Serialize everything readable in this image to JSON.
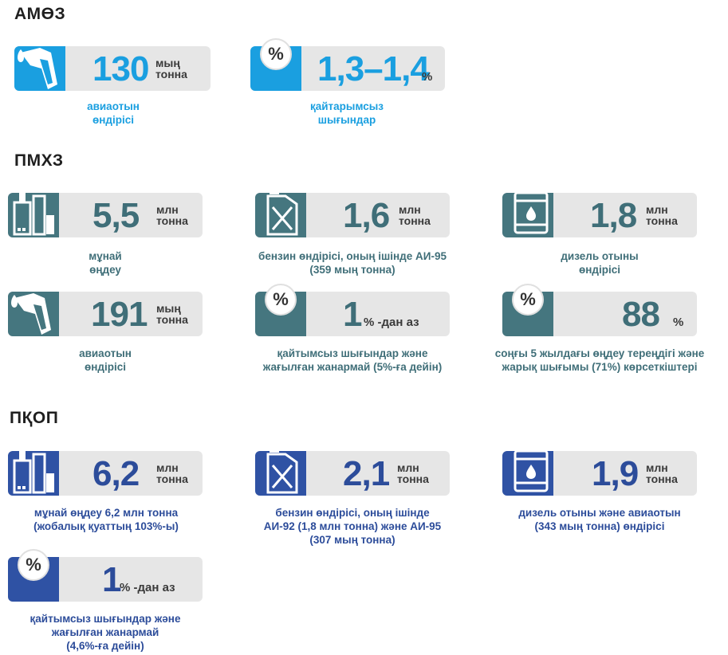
{
  "sections": {
    "amoz": "АМӨЗ",
    "pmhz": "ПМХЗ",
    "pkop": "ПҚОП"
  },
  "amoz": {
    "card1": {
      "value": "130",
      "unit1": "мың",
      "unit2": "тонна",
      "caption1": "авиаотын",
      "caption2": "өндірісі",
      "icon": "fuel-nozzle-icon"
    },
    "card2": {
      "value": "1,3–1,4",
      "unit": "%",
      "caption1": "қайтарымсыз",
      "caption2": "шығындар",
      "icon": "percent-icon"
    }
  },
  "pmhz": {
    "card1": {
      "value": "5,5",
      "unit1": "млн",
      "unit2": "тонна",
      "caption1": "мұнай",
      "caption2": "өңдеу",
      "icon": "refinery-icon"
    },
    "card2": {
      "value": "1,6",
      "unit1": "млн",
      "unit2": "тонна",
      "caption1": "бензин өндірісі, оның ішінде АИ-95",
      "caption2": "(359 мың тонна)",
      "icon": "jerrycan-icon"
    },
    "card3": {
      "value": "1,8",
      "unit1": "млн",
      "unit2": "тонна",
      "caption1": "дизель отыны",
      "caption2": "өндірісі",
      "icon": "barrel-icon"
    },
    "card4": {
      "value": "191",
      "unit1": "мың",
      "unit2": "тонна",
      "caption1": "авиаотын",
      "caption2": "өндірісі",
      "icon": "fuel-nozzle-icon"
    },
    "card5": {
      "value": "1",
      "unit": "% -дан аз",
      "caption1": "қайтымсыз шығындар және",
      "caption2": "жағылған жанармай (5%-ға дейін)",
      "icon": "percent-icon"
    },
    "card6": {
      "value": "88",
      "unit": "%",
      "caption1": "соңғы 5 жылдағы өңдеу тереңдігі және",
      "caption2": "жарық шығымы (71%) көрсеткіштері",
      "icon": "percent-icon"
    }
  },
  "pkop": {
    "card1": {
      "value": "6,2",
      "unit1": "млн",
      "unit2": "тонна",
      "caption1": "мұнай өңдеу 6,2 млн тонна",
      "caption2": "(жобалық қуаттың 103%-ы)",
      "icon": "refinery-icon"
    },
    "card2": {
      "value": "2,1",
      "unit1": "млн",
      "unit2": "тонна",
      "caption1": "бензин өндірісі, оның ішінде",
      "caption2": "АИ-92 (1,8 млн тонна) және АИ-95",
      "caption3": "(307 мың тонна)",
      "icon": "jerrycan-icon"
    },
    "card3": {
      "value": "1,9",
      "unit1": "млн",
      "unit2": "тонна",
      "caption1": "дизель отыны және авиаотын",
      "caption2": "(343 мың тонна) өндірісі",
      "icon": "barrel-icon"
    },
    "card4": {
      "value": "1",
      "unit": "% -дан аз",
      "caption1": "қайтымсыз шығындар және",
      "caption2": "жағылған жанармай",
      "caption3": "(4,6%-ға дейін)",
      "icon": "percent-icon"
    }
  },
  "colors": {
    "amoz": "#1a9fe0",
    "pmhz": "#45767f",
    "pkop": "#2f52a4",
    "card_bg": "#e6e6e6"
  }
}
